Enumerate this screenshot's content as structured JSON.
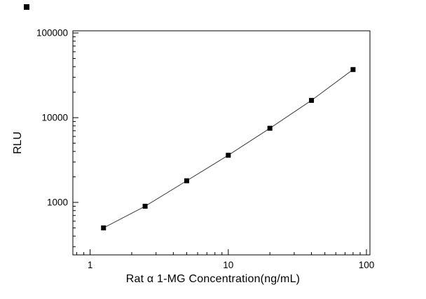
{
  "chart_data": {
    "type": "scatter",
    "title": "",
    "xlabel": "Rat α 1-MG Concentration(ng/mL)",
    "ylabel": "RLU",
    "xscale": "log",
    "yscale": "log",
    "x": [
      1.25,
      2.5,
      5,
      10,
      20,
      40,
      80
    ],
    "y": [
      500,
      900,
      1800,
      3600,
      7500,
      16000,
      37000
    ],
    "xlim": [
      0.75,
      106
    ],
    "ylim": [
      240,
      106000
    ],
    "x_ticks": [
      1,
      10,
      100
    ],
    "x_tick_labels": [
      "1",
      "10",
      "100"
    ],
    "y_ticks": [
      1000,
      10000,
      100000
    ],
    "y_tick_labels": [
      "1000",
      "10000",
      "100000"
    ],
    "marker": "square",
    "marker_color": "#000000",
    "line_color": "#3a3a3a",
    "frame_color": "#000000",
    "grid": false,
    "legend": "none"
  }
}
